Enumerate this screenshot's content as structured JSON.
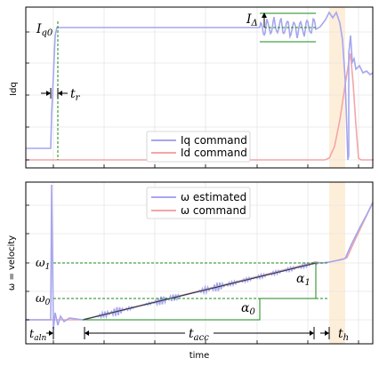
{
  "chart_data": [
    {
      "type": "line",
      "ylabel": "Idq",
      "xlabel": "",
      "legend_position": "bottom-center",
      "grid": true,
      "series": [
        {
          "name": "Iq command",
          "color": "#a6a6ef"
        },
        {
          "name": "Id command",
          "color": "#f3a6a6"
        }
      ],
      "annotations": [
        {
          "text": "I_q0",
          "main": "I",
          "sub": "q0"
        },
        {
          "text": "t_r",
          "main": "t",
          "sub": "r"
        },
        {
          "text": "I_Δ",
          "main": "I",
          "sub": "Δ"
        }
      ]
    },
    {
      "type": "line",
      "ylabel": "ω = velocity",
      "xlabel": "time",
      "legend_position": "top-center",
      "grid": true,
      "series": [
        {
          "name": "ω estimated",
          "color": "#a6a6ef"
        },
        {
          "name": "ω command",
          "color": "#f3a6a6"
        }
      ],
      "annotations": [
        {
          "text": "ω_1",
          "main": "ω",
          "sub": "1"
        },
        {
          "text": "ω_0",
          "main": "ω",
          "sub": "0"
        },
        {
          "text": "α_1",
          "main": "α",
          "sub": "1"
        },
        {
          "text": "α_0",
          "main": "α",
          "sub": "0"
        },
        {
          "text": "t_aln",
          "main": "t",
          "sub": "aln"
        },
        {
          "text": "t_acc",
          "main": "t",
          "sub": "acc"
        },
        {
          "text": "t_h",
          "main": "t",
          "sub": "h"
        }
      ]
    }
  ]
}
